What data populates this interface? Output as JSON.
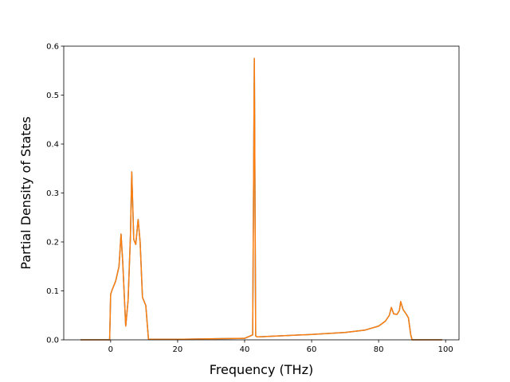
{
  "chart_data": {
    "type": "line",
    "xlabel": "Frequency (THz)",
    "ylabel": "Partial Density of States",
    "xlim": [
      -14,
      104
    ],
    "ylim": [
      0,
      0.6
    ],
    "xticks": [
      0,
      20,
      40,
      60,
      80,
      100
    ],
    "yticks": [
      0.0,
      0.1,
      0.2,
      0.3,
      0.4,
      0.5,
      0.6
    ],
    "xtick_labels": [
      "0",
      "20",
      "40",
      "60",
      "80",
      "100"
    ],
    "ytick_labels": [
      "0.0",
      "0.1",
      "0.2",
      "0.3",
      "0.4",
      "0.5",
      "0.6"
    ],
    "grid": false,
    "series": [
      {
        "color": "#1f77b4",
        "x": [
          -9,
          -0.3,
          0,
          0.5,
          1.5,
          2.5,
          3.1,
          3.6,
          4.5,
          5.2,
          5.9,
          6.3,
          6.9,
          7.5,
          8.2,
          8.8,
          9.5,
          10.5,
          10.9,
          11.3,
          20,
          40,
          42.4,
          42.9,
          43.3,
          43.7,
          44.2,
          60,
          70,
          76,
          80,
          82,
          83.2,
          83.8,
          84.5,
          85.5,
          86.2,
          86.6,
          87.3,
          88.3,
          88.9,
          89.6,
          90,
          99
        ],
        "y": [
          0,
          0,
          0.093,
          0.103,
          0.12,
          0.15,
          0.216,
          0.16,
          0.028,
          0.08,
          0.21,
          0.343,
          0.205,
          0.195,
          0.246,
          0.2,
          0.087,
          0.07,
          0.035,
          0.001,
          0.001,
          0.003,
          0.01,
          0.575,
          0.008,
          0.006,
          0.006,
          0.011,
          0.015,
          0.02,
          0.028,
          0.038,
          0.05,
          0.066,
          0.053,
          0.052,
          0.06,
          0.078,
          0.062,
          0.052,
          0.045,
          0.01,
          0,
          0
        ]
      },
      {
        "color": "#ff7f0e",
        "x": [
          -9,
          -0.3,
          0,
          0.5,
          1.5,
          2.5,
          3.1,
          3.6,
          4.5,
          5.2,
          5.9,
          6.3,
          6.9,
          7.5,
          8.2,
          8.8,
          9.5,
          10.5,
          10.9,
          11.3,
          20,
          40,
          42.4,
          42.9,
          43.3,
          43.7,
          44.2,
          60,
          70,
          76,
          80,
          82,
          83.2,
          83.8,
          84.5,
          85.5,
          86.2,
          86.6,
          87.3,
          88.3,
          88.9,
          89.6,
          90,
          99
        ],
        "y": [
          0,
          0,
          0.093,
          0.103,
          0.12,
          0.15,
          0.216,
          0.16,
          0.028,
          0.08,
          0.21,
          0.343,
          0.205,
          0.195,
          0.246,
          0.2,
          0.087,
          0.07,
          0.035,
          0.001,
          0.001,
          0.003,
          0.01,
          0.575,
          0.008,
          0.006,
          0.006,
          0.011,
          0.015,
          0.02,
          0.028,
          0.038,
          0.05,
          0.066,
          0.053,
          0.052,
          0.06,
          0.078,
          0.062,
          0.052,
          0.045,
          0.01,
          0,
          0
        ]
      }
    ]
  }
}
